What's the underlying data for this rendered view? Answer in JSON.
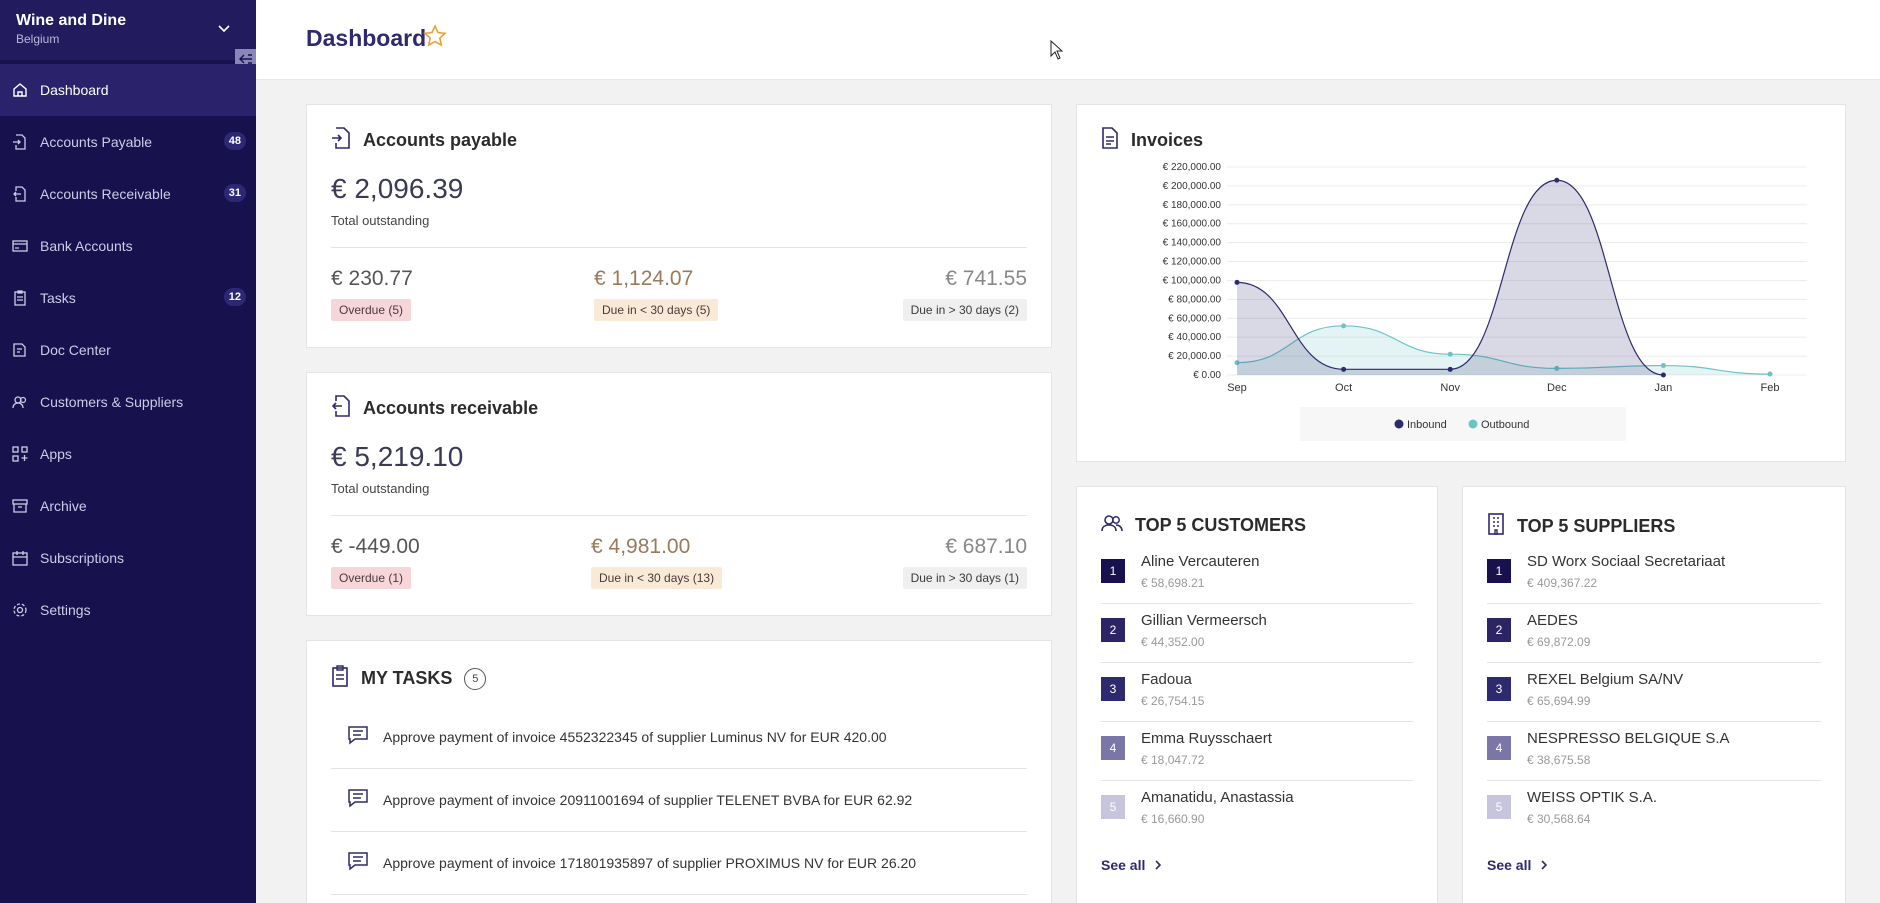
{
  "sidebar": {
    "brand": {
      "name": "Wine and Dine",
      "country": "Belgium"
    },
    "items": [
      {
        "label": "Dashboard",
        "icon": "home-icon",
        "badge": ""
      },
      {
        "label": "Accounts Payable",
        "icon": "inbound-document-icon",
        "badge": "48"
      },
      {
        "label": "Accounts Receivable",
        "icon": "outbound-document-icon",
        "badge": "31"
      },
      {
        "label": "Bank Accounts",
        "icon": "credit-card-icon",
        "badge": ""
      },
      {
        "label": "Tasks",
        "icon": "clipboard-icon",
        "badge": "12"
      },
      {
        "label": "Doc Center",
        "icon": "doc-center-icon",
        "badge": ""
      },
      {
        "label": "Customers & Suppliers",
        "icon": "users-icon",
        "badge": ""
      },
      {
        "label": "Apps",
        "icon": "apps-icon",
        "badge": ""
      },
      {
        "label": "Archive",
        "icon": "archive-icon",
        "badge": ""
      },
      {
        "label": "Subscriptions",
        "icon": "calendar-icon",
        "badge": ""
      },
      {
        "label": "Settings",
        "icon": "gear-icon",
        "badge": ""
      }
    ]
  },
  "header": {
    "title": "Dashboard"
  },
  "payable": {
    "title": "Accounts payable",
    "total": "€ 2,096.39",
    "total_label": "Total outstanding",
    "overdue_amt": "€ 230.77",
    "overdue_label": "Overdue (5)",
    "due30_amt": "€ 1,124.07",
    "due30_label": "Due in < 30 days (5)",
    "due30plus_amt": "€ 741.55",
    "due30plus_label": "Due in > 30 days (2)"
  },
  "receivable": {
    "title": "Accounts receivable",
    "total": "€ 5,219.10",
    "total_label": "Total outstanding",
    "overdue_amt": "€ -449.00",
    "overdue_label": "Overdue (1)",
    "due30_amt": "€ 4,981.00",
    "due30_label": "Due in < 30 days (13)",
    "due30plus_amt": "€ 687.10",
    "due30plus_label": "Due in > 30 days (1)"
  },
  "tasks": {
    "title": "MY TASKS",
    "count": "5",
    "items": [
      "Approve payment of invoice 4552322345 of supplier Luminus NV for EUR 420.00",
      "Approve payment of invoice 20911001694 of supplier TELENET BVBA for EUR 62.92",
      "Approve payment of invoice 171801935897 of supplier PROXIMUS NV for EUR 26.20"
    ]
  },
  "invoices": {
    "title": "Invoices"
  },
  "chart_data": {
    "type": "area",
    "x": [
      "Sep",
      "Oct",
      "Nov",
      "Dec",
      "Jan",
      "Feb"
    ],
    "series": [
      {
        "name": "Inbound",
        "values": [
          98000,
          6000,
          6000,
          206000,
          0,
          null
        ],
        "color": "#2e2a6e"
      },
      {
        "name": "Outbound",
        "values": [
          13000,
          52000,
          22000,
          7000,
          10000,
          1000
        ],
        "color": "#6cc4c8"
      }
    ],
    "yticks": [
      "€ 0.00",
      "€ 20,000.00",
      "€ 40,000.00",
      "€ 60,000.00",
      "€ 80,000.00",
      "€ 100,000.00",
      "€ 120,000.00",
      "€ 140,000.00",
      "€ 160,000.00",
      "€ 180,000.00",
      "€ 200,000.00",
      "€ 220,000.00"
    ],
    "ylim": [
      0,
      220000
    ],
    "legend": "bottom"
  },
  "customers": {
    "title": "TOP 5 CUSTOMERS",
    "items": [
      {
        "rank": "1",
        "name": "Aline Vercauteren",
        "value": "€ 58,698.21"
      },
      {
        "rank": "2",
        "name": "Gillian Vermeersch",
        "value": "€ 44,352.00"
      },
      {
        "rank": "3",
        "name": "Fadoua",
        "value": "€ 26,754.15"
      },
      {
        "rank": "4",
        "name": "Emma Ruysschaert",
        "value": "€ 18,047.72"
      },
      {
        "rank": "5",
        "name": "Amanatidu, Anastassia",
        "value": "€ 16,660.90"
      }
    ],
    "see_all": "See all"
  },
  "suppliers": {
    "title": "TOP 5 SUPPLIERS",
    "items": [
      {
        "rank": "1",
        "name": "SD Worx Sociaal Secretariaat",
        "value": "€ 409,367.22"
      },
      {
        "rank": "2",
        "name": "AEDES",
        "value": "€ 69,872.09"
      },
      {
        "rank": "3",
        "name": "REXEL Belgium SA/NV",
        "value": "€ 65,694.99"
      },
      {
        "rank": "4",
        "name": "NESPRESSO BELGIQUE S.A",
        "value": "€ 38,675.58"
      },
      {
        "rank": "5",
        "name": "WEISS OPTIK S.A.",
        "value": "€ 30,568.64"
      }
    ],
    "see_all": "See all"
  },
  "colors": {
    "sidebar": "#17114d",
    "accent": "#2e2a6e",
    "inbound": "#2e2a6e",
    "outbound": "#6cc4c8",
    "star": "#e8a23a"
  }
}
